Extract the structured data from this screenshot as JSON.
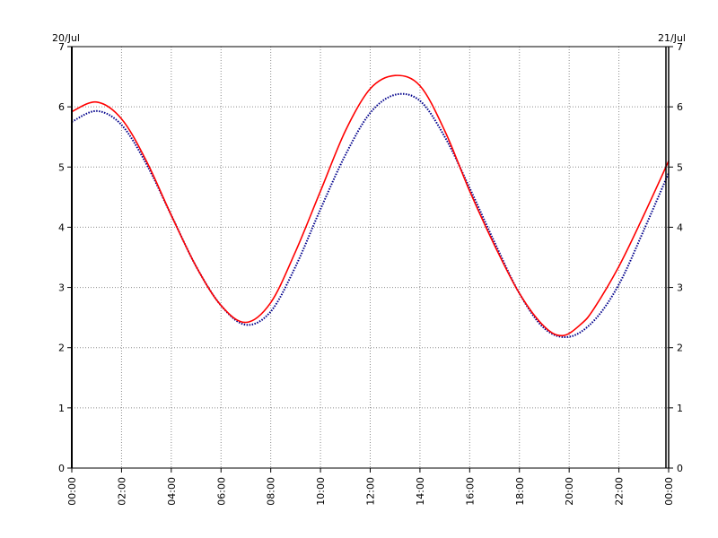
{
  "chart_data": {
    "type": "line",
    "title": "",
    "xlabel": "",
    "ylabel": "",
    "start_date_label": "20/Jul",
    "end_date_label": "21/Jul",
    "x_unit": "hours",
    "xlim": [
      0,
      24
    ],
    "ylim": [
      0,
      7
    ],
    "y_ticks": [
      0,
      1,
      2,
      3,
      4,
      5,
      6,
      7
    ],
    "x_ticks": [
      0,
      2,
      4,
      6,
      8,
      10,
      12,
      14,
      16,
      18,
      20,
      22,
      24
    ],
    "x_tick_labels": [
      "00:00",
      "02:00",
      "04:00",
      "06:00",
      "08:00",
      "10:00",
      "12:00",
      "14:00",
      "16:00",
      "18:00",
      "20:00",
      "22:00",
      "00:00"
    ],
    "grid": true,
    "legend": "none",
    "series": [
      {
        "color": "#ff0000",
        "style": "solid",
        "x": [
          0,
          1,
          2,
          3,
          4,
          5,
          6,
          7,
          8,
          9,
          10,
          11,
          12,
          13,
          14,
          15,
          16,
          17,
          18,
          19,
          19.75,
          20.5,
          21,
          22,
          23,
          24
        ],
        "y": [
          5.92,
          6.08,
          5.8,
          5.1,
          4.2,
          3.35,
          2.7,
          2.42,
          2.75,
          3.6,
          4.6,
          5.6,
          6.3,
          6.52,
          6.35,
          5.6,
          4.6,
          3.7,
          2.9,
          2.35,
          2.2,
          2.4,
          2.65,
          3.35,
          4.2,
          5.1
        ]
      },
      {
        "color": "#00008b",
        "style": "dotted",
        "x": [
          0,
          1,
          2,
          3,
          4,
          5,
          6,
          7,
          8,
          9,
          10,
          11,
          12,
          13,
          14,
          15,
          16,
          17,
          18,
          19,
          20,
          21,
          22,
          23,
          24
        ],
        "y": [
          5.75,
          5.93,
          5.7,
          5.05,
          4.2,
          3.35,
          2.7,
          2.38,
          2.6,
          3.35,
          4.3,
          5.2,
          5.9,
          6.2,
          6.1,
          5.5,
          4.65,
          3.75,
          2.9,
          2.32,
          2.18,
          2.45,
          3.05,
          3.95,
          4.9
        ]
      }
    ]
  }
}
